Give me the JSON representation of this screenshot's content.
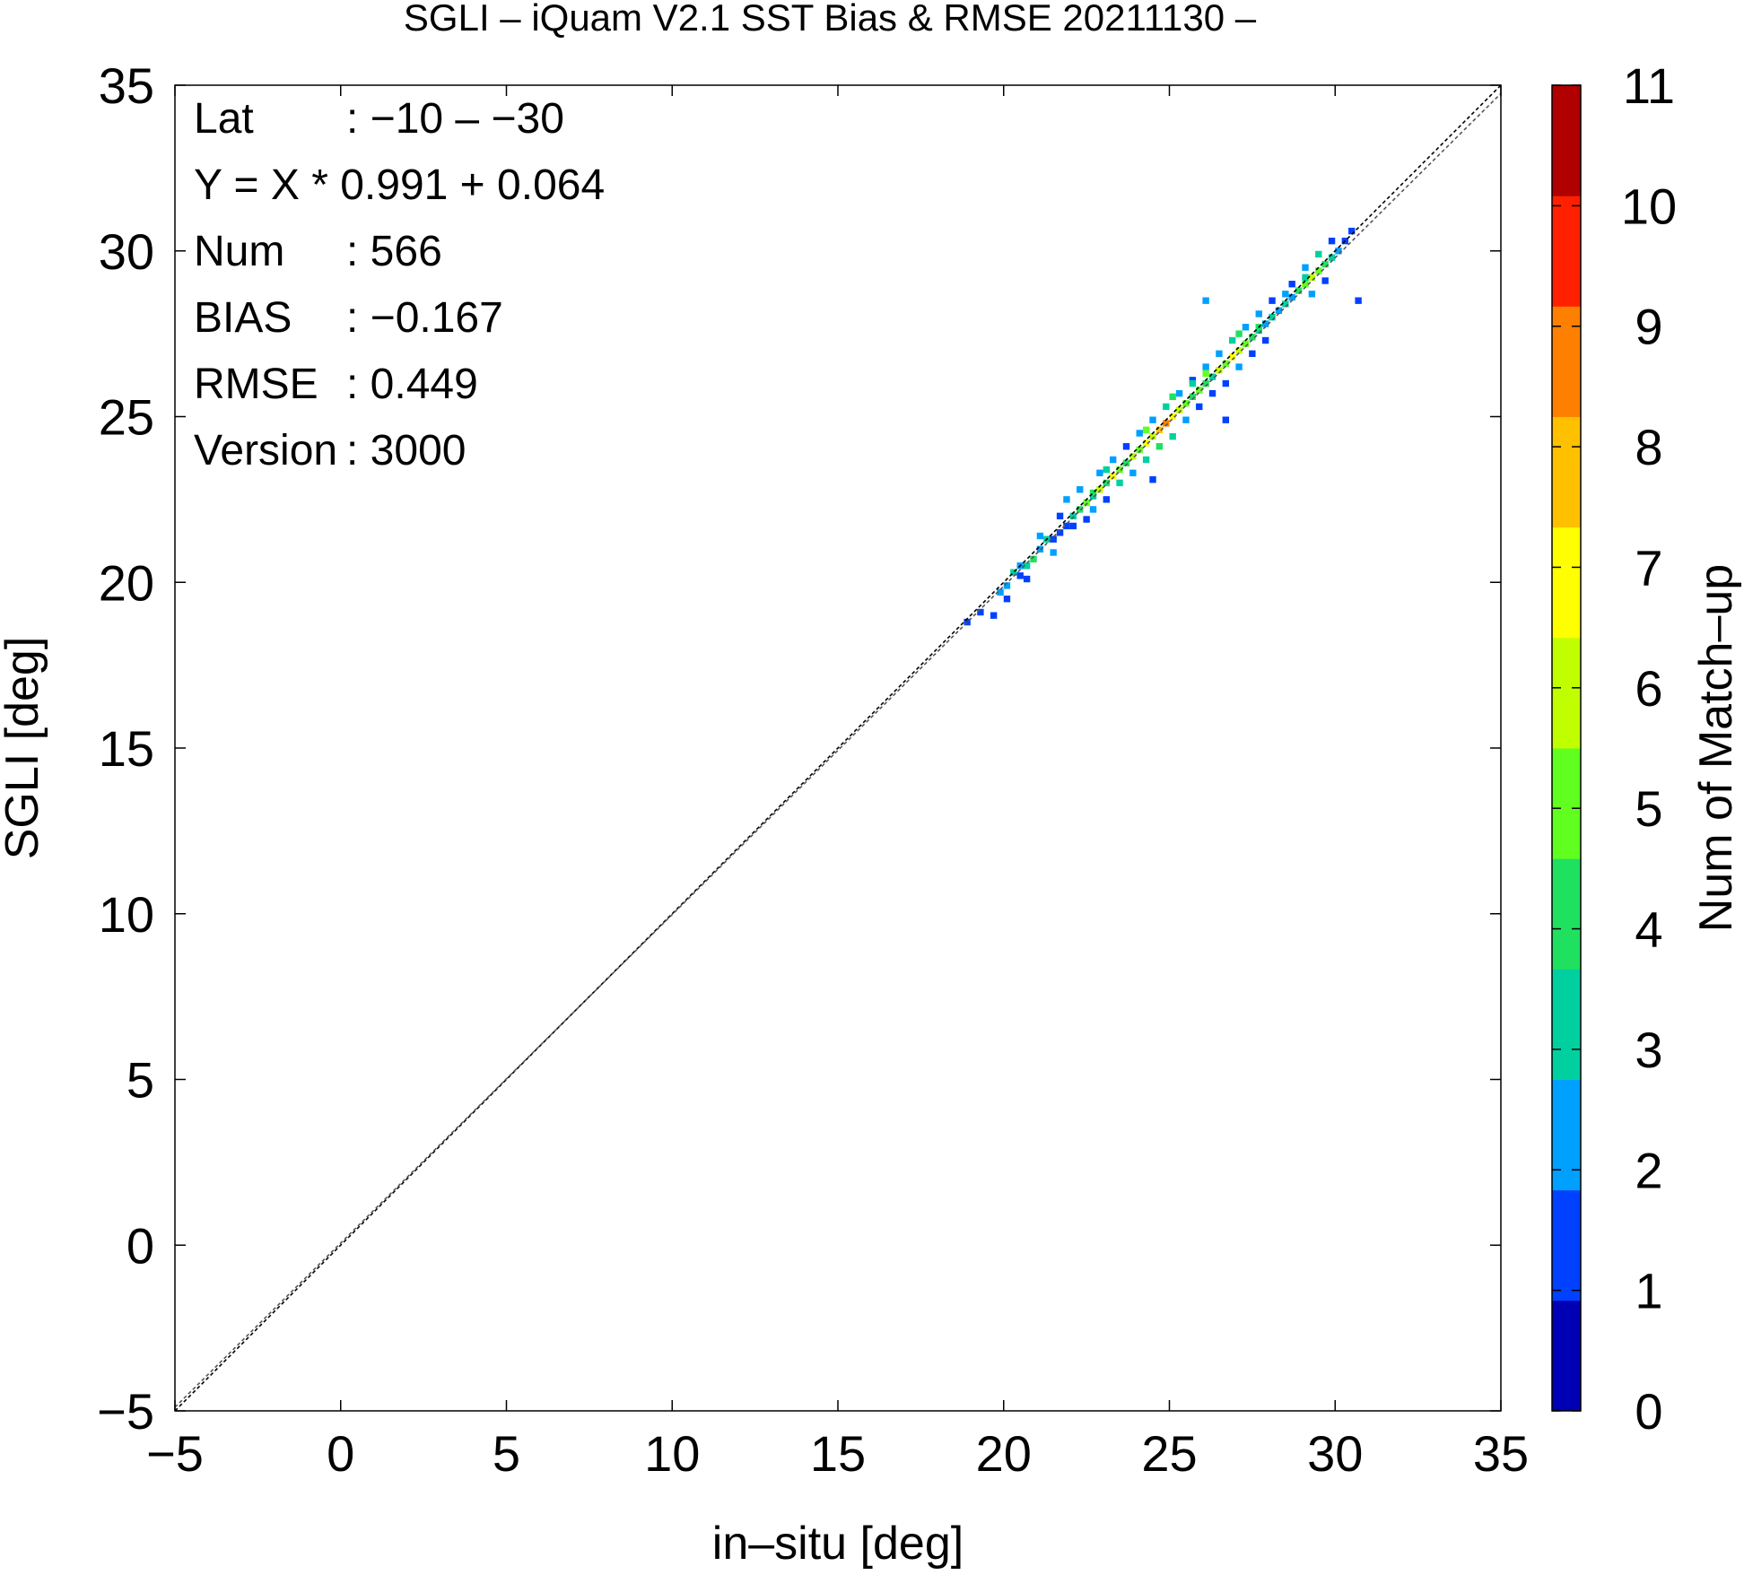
{
  "chart_data": {
    "type": "heatmap",
    "title": "SGLI – iQuam V2.1 SST Bias & RMSE 20211130 –",
    "xlabel": "in–situ [deg]",
    "ylabel": "SGLI [deg]",
    "xlim": [
      -5,
      35
    ],
    "ylim": [
      -5,
      35
    ],
    "x_ticks": [
      -5,
      0,
      5,
      10,
      15,
      20,
      25,
      30,
      35
    ],
    "y_ticks": [
      -5,
      0,
      5,
      10,
      15,
      20,
      25,
      30,
      35
    ],
    "x_tick_labels": [
      "−5",
      "0",
      "5",
      "10",
      "15",
      "20",
      "25",
      "30",
      "35"
    ],
    "y_tick_labels": [
      "−5",
      "0",
      "5",
      "10",
      "15",
      "20",
      "25",
      "30",
      "35"
    ],
    "colorbar": {
      "label": "Num of Match–up",
      "range": [
        0,
        11
      ],
      "ticks": [
        "0",
        "1",
        "2",
        "3",
        "4",
        "5",
        "6",
        "7",
        "8",
        "9",
        "10",
        "11"
      ],
      "colors": [
        "#0000b4",
        "#0040ff",
        "#00a0ff",
        "#00d0a0",
        "#20e060",
        "#60ff20",
        "#c0ff00",
        "#ffff00",
        "#ffc000",
        "#ff8000",
        "#ff2000",
        "#b00000"
      ]
    },
    "stats": [
      {
        "key": "Lat",
        "value": ": −10 – −30"
      },
      {
        "key": "Y = X * 0.991 + 0.064",
        "value": ""
      },
      {
        "key": "Num",
        "value": ": 566"
      },
      {
        "key": "BIAS",
        "value": ": −0.167"
      },
      {
        "key": "RMSE",
        "value": ": 0.449"
      },
      {
        "key": "Version",
        "value": ": 3000"
      }
    ],
    "lines": [
      {
        "slope": 1.0,
        "intercept": 0.0,
        "style": "dashed"
      },
      {
        "slope": 0.991,
        "intercept": 0.064,
        "style": "dashed"
      }
    ],
    "bin_size": 0.2,
    "cells": [
      [
        18.8,
        18.7,
        1
      ],
      [
        19.2,
        19.0,
        1
      ],
      [
        19.6,
        18.9,
        1
      ],
      [
        19.8,
        19.6,
        2
      ],
      [
        20.0,
        19.8,
        2
      ],
      [
        20.0,
        19.4,
        1
      ],
      [
        20.2,
        20.2,
        3
      ],
      [
        20.4,
        20.1,
        1
      ],
      [
        20.4,
        20.4,
        2
      ],
      [
        20.6,
        20.4,
        3
      ],
      [
        20.6,
        20.0,
        1
      ],
      [
        20.8,
        20.6,
        4
      ],
      [
        21.0,
        20.9,
        2
      ],
      [
        21.2,
        21.2,
        3
      ],
      [
        21.4,
        21.2,
        1
      ],
      [
        21.4,
        20.8,
        2
      ],
      [
        21.6,
        21.4,
        1
      ],
      [
        21.6,
        21.9,
        1
      ],
      [
        21.8,
        21.6,
        1
      ],
      [
        21.8,
        22.4,
        2
      ],
      [
        22.0,
        21.9,
        3
      ],
      [
        22.0,
        21.6,
        1
      ],
      [
        22.2,
        22.1,
        4
      ],
      [
        22.2,
        22.7,
        2
      ],
      [
        22.4,
        22.3,
        5
      ],
      [
        22.4,
        21.8,
        1
      ],
      [
        22.6,
        22.5,
        3
      ],
      [
        22.6,
        22.1,
        2
      ],
      [
        22.8,
        22.7,
        6
      ],
      [
        22.8,
        23.2,
        2
      ],
      [
        23.0,
        22.9,
        4
      ],
      [
        23.0,
        22.4,
        1
      ],
      [
        23.2,
        23.1,
        7
      ],
      [
        23.2,
        23.6,
        2
      ],
      [
        23.4,
        23.3,
        5
      ],
      [
        23.4,
        22.9,
        3
      ],
      [
        23.6,
        23.5,
        4
      ],
      [
        23.6,
        24.0,
        1
      ],
      [
        23.8,
        23.7,
        6
      ],
      [
        23.8,
        23.2,
        2
      ],
      [
        24.0,
        23.9,
        5
      ],
      [
        24.0,
        24.4,
        2
      ],
      [
        24.2,
        24.1,
        7
      ],
      [
        24.2,
        23.6,
        3
      ],
      [
        24.4,
        24.3,
        6
      ],
      [
        24.4,
        24.8,
        2
      ],
      [
        24.6,
        24.5,
        8
      ],
      [
        24.6,
        24.0,
        4
      ],
      [
        24.8,
        24.7,
        9
      ],
      [
        24.8,
        25.2,
        3
      ],
      [
        25.0,
        24.9,
        7
      ],
      [
        25.0,
        24.3,
        3
      ],
      [
        25.2,
        25.1,
        6
      ],
      [
        25.2,
        25.6,
        2
      ],
      [
        25.4,
        25.3,
        5
      ],
      [
        25.4,
        24.8,
        2
      ],
      [
        25.6,
        25.5,
        4
      ],
      [
        25.6,
        26.0,
        1
      ],
      [
        25.8,
        25.7,
        5
      ],
      [
        25.8,
        25.2,
        1
      ],
      [
        26.0,
        25.9,
        4
      ],
      [
        26.0,
        26.4,
        2
      ],
      [
        26.2,
        26.1,
        3
      ],
      [
        26.2,
        25.6,
        1
      ],
      [
        26.4,
        26.3,
        6
      ],
      [
        26.4,
        26.8,
        2
      ],
      [
        26.6,
        26.5,
        5
      ],
      [
        26.6,
        25.9,
        1
      ],
      [
        26.8,
        26.7,
        7
      ],
      [
        26.8,
        27.2,
        3
      ],
      [
        27.0,
        26.9,
        6
      ],
      [
        27.0,
        26.4,
        2
      ],
      [
        27.2,
        27.1,
        5
      ],
      [
        27.2,
        27.6,
        2
      ],
      [
        27.4,
        27.3,
        4
      ],
      [
        27.4,
        26.8,
        1
      ],
      [
        27.6,
        27.5,
        3
      ],
      [
        27.6,
        28.0,
        2
      ],
      [
        27.8,
        27.7,
        2
      ],
      [
        27.8,
        27.2,
        1
      ],
      [
        28.0,
        27.9,
        3
      ],
      [
        28.0,
        28.4,
        1
      ],
      [
        28.2,
        28.1,
        2
      ],
      [
        28.4,
        28.3,
        3
      ],
      [
        28.6,
        28.5,
        2
      ],
      [
        28.6,
        28.9,
        1
      ],
      [
        28.8,
        28.7,
        4
      ],
      [
        29.0,
        28.9,
        5
      ],
      [
        29.0,
        29.4,
        2
      ],
      [
        29.2,
        29.1,
        6
      ],
      [
        29.2,
        28.6,
        2
      ],
      [
        29.4,
        29.3,
        5
      ],
      [
        29.4,
        29.8,
        3
      ],
      [
        29.6,
        29.5,
        4
      ],
      [
        29.6,
        29.0,
        1
      ],
      [
        29.8,
        29.7,
        3
      ],
      [
        29.8,
        30.2,
        1
      ],
      [
        30.0,
        29.9,
        2
      ],
      [
        30.2,
        30.2,
        1
      ],
      [
        30.4,
        30.5,
        1
      ],
      [
        30.6,
        28.4,
        1
      ],
      [
        26.0,
        28.4,
        2
      ],
      [
        24.4,
        23.0,
        1
      ],
      [
        26.6,
        24.8,
        1
      ],
      [
        22.6,
        22.6,
        4
      ],
      [
        24.2,
        24.5,
        5
      ],
      [
        25.6,
        25.9,
        3
      ],
      [
        27.0,
        27.4,
        4
      ],
      [
        29.0,
        29.1,
        3
      ],
      [
        23.0,
        23.3,
        3
      ],
      [
        21.0,
        21.3,
        2
      ],
      [
        25.0,
        25.5,
        4
      ],
      [
        28.4,
        28.6,
        2
      ],
      [
        26.0,
        26.2,
        5
      ],
      [
        27.6,
        27.6,
        4
      ]
    ]
  }
}
